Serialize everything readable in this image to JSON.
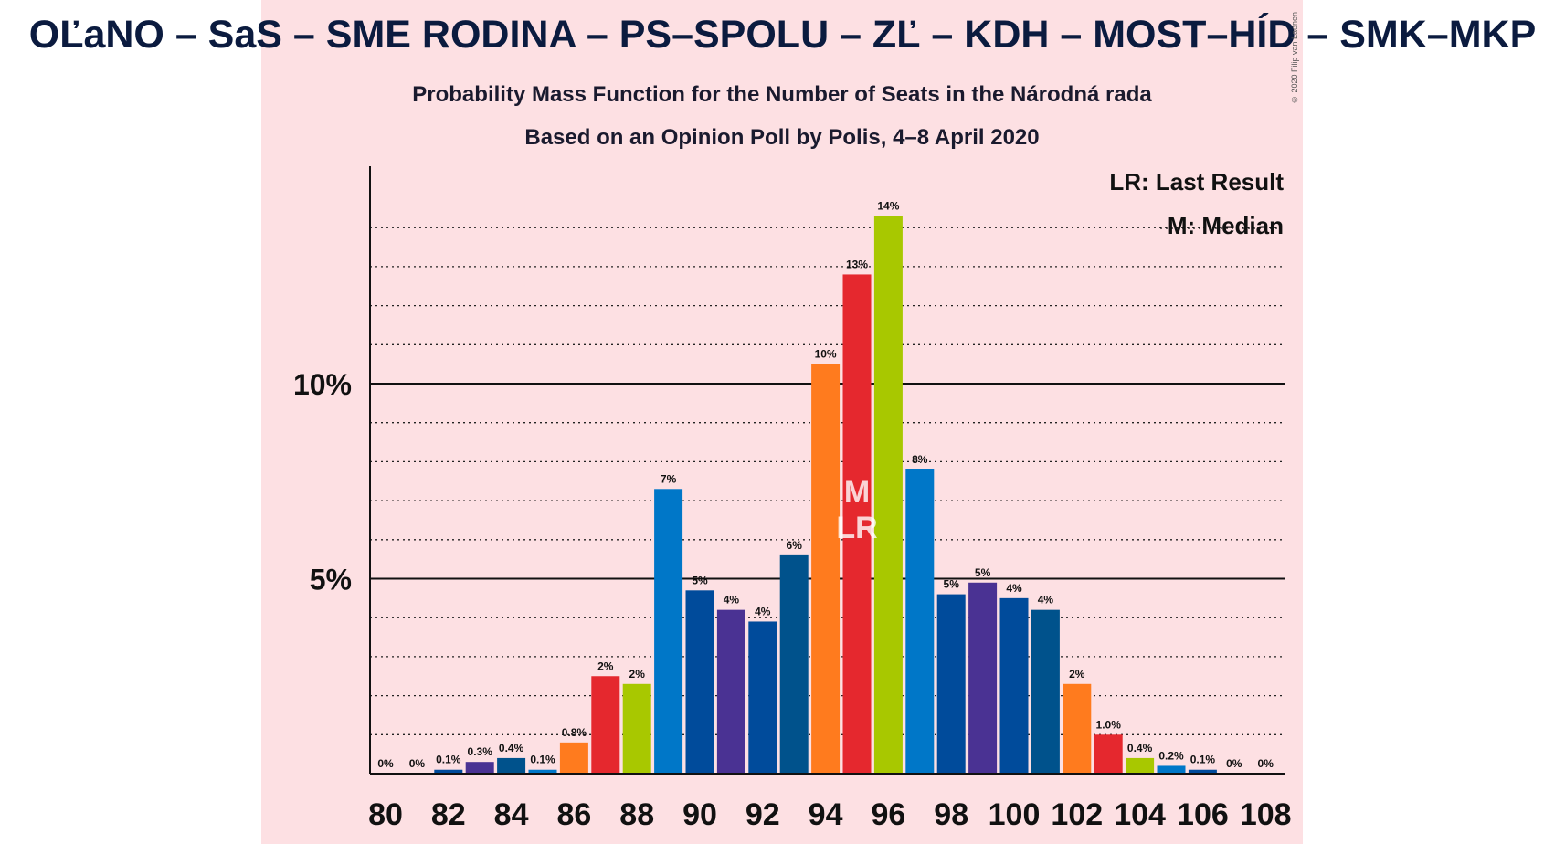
{
  "title": "OĽaNO – SaS – SME RODINA – PS–SPOLU – ZĽ – KDH – MOST–HÍD – SMK–MKP",
  "subtitle": "Probability Mass Function for the Number of Seats in the Národná rada",
  "source_line": "Based on an Opinion Poll by Polis, 4–8 April 2020",
  "copyright": "© 2020 Filip van Laenen",
  "legend": {
    "last_result": "LR: Last Result",
    "median": "M: Median"
  },
  "colors": {
    "background_panel": "#fde0e3",
    "olano_green": "#a8c800",
    "sas_blue": "#0077c8",
    "sme_navy": "#004b9b",
    "purple": "#4a3293",
    "orange": "#ff7b1e",
    "red": "#e5282e",
    "teal": "#00528c"
  },
  "chart_data": {
    "type": "bar",
    "title": "Probability Mass Function for the Number of Seats in the Národná rada",
    "xlabel": "",
    "ylabel": "",
    "ylim": [
      0,
      15.5
    ],
    "y_ticks": [
      {
        "value": 5,
        "label": "5%"
      },
      {
        "value": 10,
        "label": "10%"
      }
    ],
    "x_tick_labels": [
      "80",
      "82",
      "84",
      "86",
      "88",
      "90",
      "92",
      "94",
      "96",
      "98",
      "100",
      "102",
      "104",
      "106",
      "108"
    ],
    "median_seats": 95,
    "last_result_seats": 95,
    "median_marker": "M",
    "last_result_marker": "LR",
    "categories": [
      80,
      81,
      82,
      83,
      84,
      85,
      86,
      87,
      88,
      89,
      90,
      91,
      92,
      93,
      94,
      95,
      96,
      97,
      98,
      99,
      100,
      101,
      102,
      103,
      104,
      105,
      106,
      107,
      108
    ],
    "values": [
      0,
      0,
      0.1,
      0.3,
      0.4,
      0.1,
      0.8,
      2.5,
      2.3,
      7.3,
      4.7,
      4.2,
      3.9,
      5.6,
      10.5,
      12.8,
      14.3,
      7.8,
      4.6,
      4.9,
      4.5,
      4.2,
      2.3,
      1.0,
      0.4,
      0.2,
      0.1,
      0,
      0
    ],
    "data_labels": [
      "0%",
      "0%",
      "0.1%",
      "0.3%",
      "0.4%",
      "0.1%",
      "0.8%",
      "2%",
      "2%",
      "7%",
      "5%",
      "4%",
      "4%",
      "6%",
      "10%",
      "13%",
      "14%",
      "8%",
      "5%",
      "5%",
      "4%",
      "4%",
      "2%",
      "1.0%",
      "0.4%",
      "0.2%",
      "0.1%",
      "0%",
      "0%"
    ],
    "bar_colors": [
      "#a8c800",
      "#0077c8",
      "#004b9b",
      "#4a3293",
      "#00528c",
      "#0077c8",
      "#ff7b1e",
      "#e5282e",
      "#a8c800",
      "#0077c8",
      "#004b9b",
      "#4a3293",
      "#004b9b",
      "#00528c",
      "#ff7b1e",
      "#e5282e",
      "#a8c800",
      "#0077c8",
      "#004b9b",
      "#4a3293",
      "#004b9b",
      "#00528c",
      "#ff7b1e",
      "#e5282e",
      "#a8c800",
      "#0077c8",
      "#004b9b",
      "#4a3293",
      "#00528c"
    ],
    "grid": true,
    "legend_position": "top-right"
  }
}
